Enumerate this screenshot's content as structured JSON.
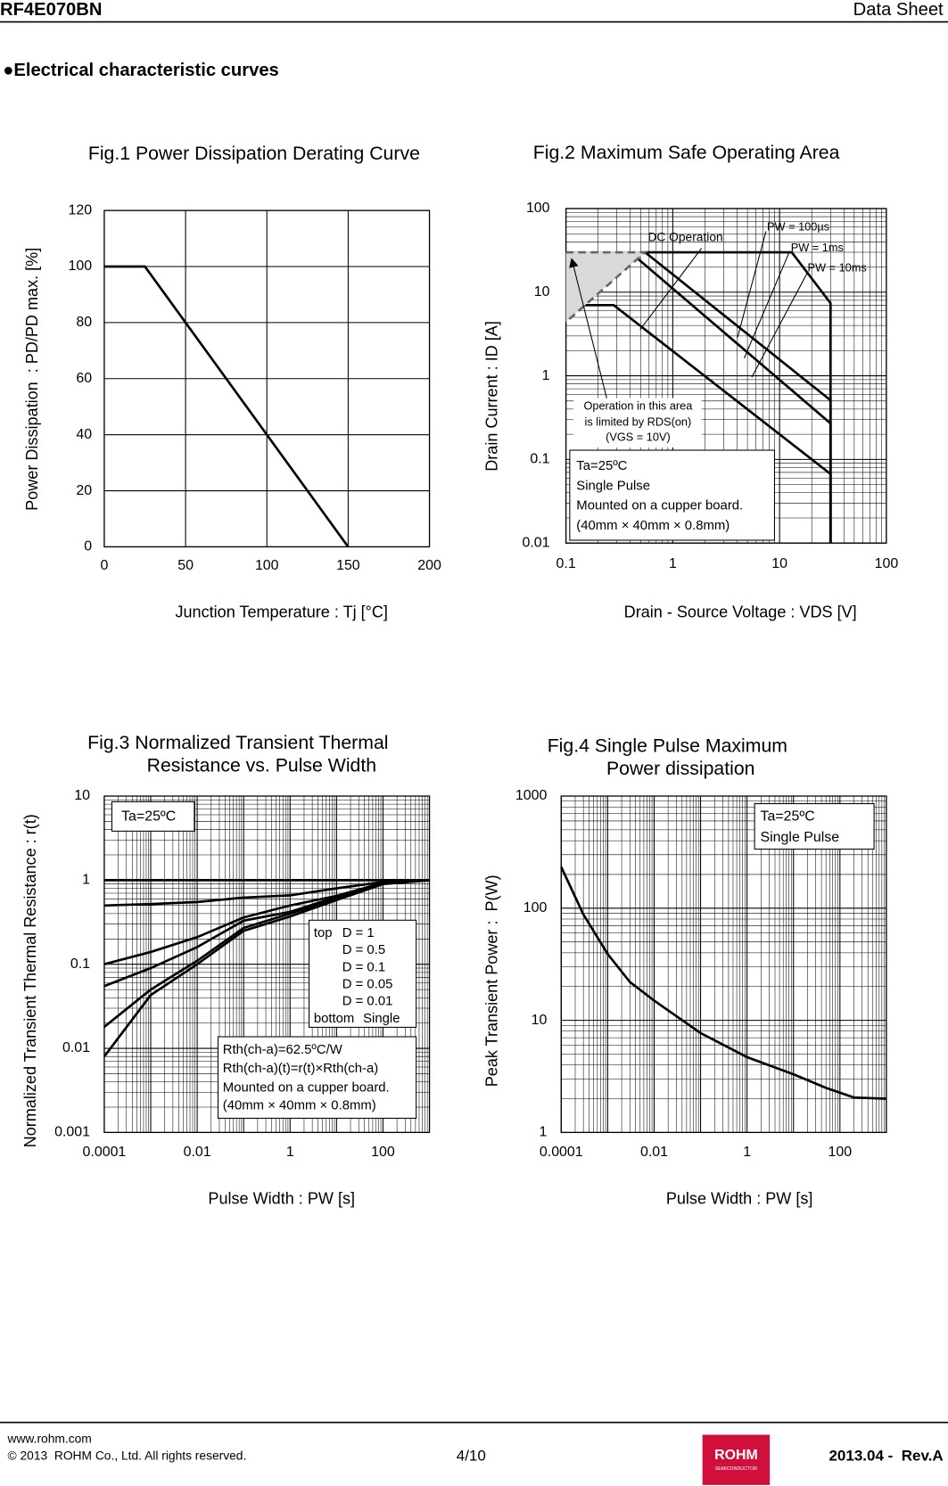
{
  "header": {
    "part": "RF4E070BN",
    "doc": "Data Sheet",
    "section": "●Electrical characteristic curves"
  },
  "footer": {
    "url": "www.rohm.com",
    "copyright": "© 2013  ROHM Co., Ltd. All rights reserved.",
    "page": "4/10",
    "logo": "ROHM",
    "logo_sub": "SEMICONDUCTOR",
    "revision": "2013.04 -  Rev.A"
  },
  "chart_data": [
    {
      "type": "line",
      "title": [
        "Fig.1 Power Dissipation Derating Curve"
      ],
      "x_label": "Junction Temperature : Tj [°C]",
      "y_label": "Power Dissipation  : PD/PD max. [%]",
      "x": [
        0,
        25,
        150
      ],
      "series": [
        {
          "color": "#000000",
          "values": [
            100,
            100,
            0
          ]
        }
      ],
      "xlim": [
        0,
        200
      ],
      "ylim": [
        0,
        120
      ],
      "xticks": [
        0,
        50,
        100,
        150,
        200
      ],
      "yticks": [
        0,
        20,
        40,
        60,
        80,
        100,
        120
      ],
      "grid": true,
      "xlog": false,
      "ylog": false,
      "annotations": []
    },
    {
      "type": "line",
      "title": [
        "Fig.2 Maximum Safe Operating Area"
      ],
      "x_label": "Drain - Source Voltage : VDS [V]",
      "y_label": "Drain Current : ID [A]",
      "series": [
        {
          "color": "#000000",
          "x": [
            0.55,
            13,
            30,
            30
          ],
          "values": [
            30,
            30,
            7.4,
            0.01
          ]
        },
        {
          "color": "#000000",
          "x": [
            0.55,
            30,
            30
          ],
          "values": [
            30,
            0.51,
            0.01
          ]
        },
        {
          "color": "#000000",
          "x": [
            0.4,
            30,
            30
          ],
          "values": [
            30,
            0.27,
            0.01
          ]
        },
        {
          "color": "#000000",
          "x": [
            0.1,
            0.28,
            30,
            30
          ],
          "values": [
            7,
            7,
            0.067,
            0.01
          ]
        },
        {
          "color": "#666666",
          "dashed": true,
          "fill": "#d9d9d9",
          "x": [
            0.1,
            0.55,
            0.1
          ],
          "values": [
            30,
            30,
            4.4
          ]
        }
      ],
      "xlim": [
        0.1,
        100
      ],
      "ylim": [
        0.01,
        100
      ],
      "xticks": [
        0.1,
        1,
        10,
        100
      ],
      "yticks": [
        0.01,
        0.1,
        1,
        10,
        100
      ],
      "grid": true,
      "minor_grid": true,
      "xlog": true,
      "ylog": true,
      "annotations": [
        "DC Operation",
        "PW = 100µs",
        "PW = 1ms",
        "PW = 10ms",
        "Operation in this area",
        "is limited by RDS(on)",
        "(VGS = 10V)",
        "Ta=25ºC",
        "Single Pulse",
        "Mounted on a cupper board.",
        "(40mm × 40mm × 0.8mm)"
      ]
    },
    {
      "type": "line",
      "title": [
        "Fig.3 Normalized Transient Thermal",
        "Resistance vs. Pulse Width"
      ],
      "x_label": "Pulse Width : PW [s]",
      "y_label": "Normalized Transient Thermal Resistance : r(t)",
      "x": [
        0.0001,
        0.001,
        0.01,
        0.1,
        1,
        10,
        100,
        1000
      ],
      "series": [
        {
          "name": "D = 1",
          "color": "#000000",
          "values": [
            1,
            1,
            1,
            1,
            1,
            1,
            1,
            1
          ]
        },
        {
          "name": "D = 0.5",
          "color": "#000000",
          "values": [
            0.5,
            0.52,
            0.55,
            0.62,
            0.66,
            0.8,
            0.95,
            1
          ]
        },
        {
          "name": "D = 0.1",
          "color": "#000000",
          "values": [
            0.1,
            0.14,
            0.21,
            0.36,
            0.5,
            0.65,
            0.93,
            1
          ]
        },
        {
          "name": "D = 0.05",
          "color": "#000000",
          "values": [
            0.055,
            0.09,
            0.16,
            0.33,
            0.42,
            0.63,
            0.92,
            1
          ]
        },
        {
          "name": "D = 0.01",
          "color": "#000000",
          "values": [
            0.018,
            0.05,
            0.11,
            0.27,
            0.4,
            0.6,
            0.9,
            1
          ]
        },
        {
          "name": "Single",
          "color": "#000000",
          "values": [
            0.008,
            0.043,
            0.1,
            0.25,
            0.37,
            0.58,
            0.9,
            1
          ]
        }
      ],
      "xlim": [
        0.0001,
        1000
      ],
      "ylim": [
        0.001,
        10
      ],
      "xticks": [
        0.0001,
        0.01,
        1,
        100
      ],
      "yticks": [
        0.001,
        0.01,
        0.1,
        1,
        10
      ],
      "grid": true,
      "minor_grid": true,
      "xlog": true,
      "ylog": true,
      "annotations": [
        "Ta=25ºC",
        "top",
        "bottom",
        "Rth(ch-a)=62.5ºC/W",
        "Rth(ch-a)(t)=r(t)×Rth(ch-a)",
        "Mounted on a cupper board.",
        "(40mm × 40mm × 0.8mm)"
      ]
    },
    {
      "type": "line",
      "title": [
        "Fig.4 Single Pulse Maximum",
        "Power dissipation"
      ],
      "x_label": "Pulse Width : PW [s]",
      "y_label": "Peak Transient Power :  P(W)",
      "x": [
        0.0001,
        0.0003,
        0.001,
        0.003,
        0.01,
        0.1,
        1,
        10,
        50,
        200,
        1000
      ],
      "series": [
        {
          "color": "#000000",
          "values": [
            233,
            88,
            39,
            22,
            15,
            7.7,
            4.7,
            3.3,
            2.5,
            2.05,
            2
          ]
        }
      ],
      "xlim": [
        0.0001,
        1000
      ],
      "ylim": [
        1,
        1000
      ],
      "xticks": [
        0.0001,
        0.01,
        1,
        100
      ],
      "yticks": [
        1,
        10,
        100,
        1000
      ],
      "grid": true,
      "minor_grid": true,
      "xlog": true,
      "ylog": true,
      "annotations": [
        "Ta=25ºC",
        "Single Pulse"
      ]
    }
  ]
}
